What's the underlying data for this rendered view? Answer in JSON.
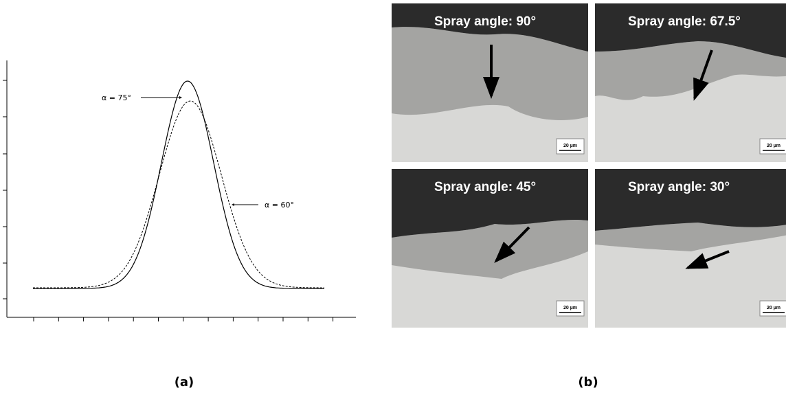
{
  "panels": [
    {
      "label": "(a)",
      "annotations": [
        "α = 75°",
        "α = 60°"
      ]
    },
    {
      "label": "(b)",
      "tiles": [
        {
          "title": "Spray angle: 90°",
          "scale": "20 µm"
        },
        {
          "title": "Spray angle: 67.5°",
          "scale": "20 µm"
        },
        {
          "title": "Spray angle: 45°",
          "scale": "20 µm"
        },
        {
          "title": "Spray angle: 30°",
          "scale": "20 µm"
        }
      ]
    }
  ]
}
